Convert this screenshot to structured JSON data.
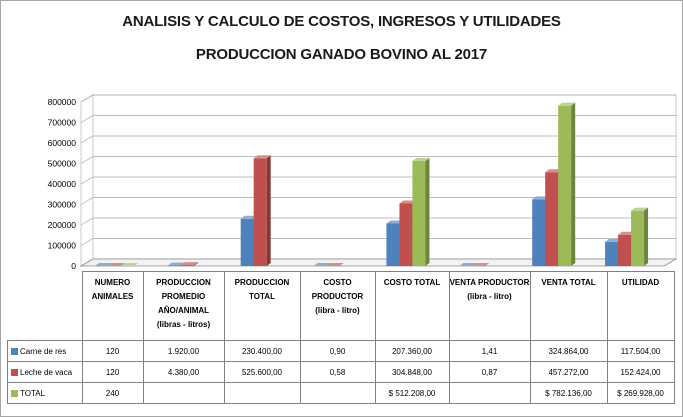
{
  "title_line1": "ANALISIS Y CALCULO DE COSTOS, INGRESOS Y UTILIDADES",
  "title_line2": "PRODUCCION GANADO BOVINO AL 2017",
  "colors": {
    "carne": "#4f81bd",
    "leche": "#c0504d",
    "total": "#9bbb59"
  },
  "chart_data": {
    "type": "bar",
    "title": "ANALISIS Y CALCULO DE COSTOS, INGRESOS Y UTILIDADES PRODUCCION GANADO BOVINO AL 2017",
    "categories": [
      "NUMERO ANIMALES",
      "PRODUCCION PROMEDIO AÑO/ANIMAL (libras - litros)",
      "PRODUCCION TOTAL",
      "COSTO PRODUCTOR (libra - litro)",
      "COSTO TOTAL",
      "VENTA PRODUCTOR (libra - litro)",
      "VENTA TOTAL",
      "UTILIDAD"
    ],
    "series": [
      {
        "name": "Carne de res",
        "values": [
          120,
          1920,
          230400,
          0.9,
          207360,
          1.41,
          324864,
          117504
        ]
      },
      {
        "name": "Leche de vaca",
        "values": [
          120,
          4380,
          525600,
          0.58,
          304848,
          0.87,
          457272,
          152424
        ]
      },
      {
        "name": "TOTAL",
        "values": [
          240,
          null,
          null,
          null,
          512208,
          null,
          782136,
          269928
        ]
      }
    ],
    "ylim": [
      0,
      800000
    ],
    "yticks": [
      "0",
      "100000",
      "200000",
      "300000",
      "400000",
      "500000",
      "600000",
      "700000",
      "800000"
    ],
    "grid": true,
    "legend": "data table"
  },
  "table": {
    "headers": [
      [
        "NUMERO",
        "ANIMALES"
      ],
      [
        "PRODUCCION",
        "PROMEDIO",
        "AÑO/ANIMAL",
        "(libras - litros)"
      ],
      [
        "PRODUCCION",
        "TOTAL"
      ],
      [
        "COSTO",
        "PRODUCTOR",
        "(libra - litro)"
      ],
      [
        "COSTO TOTAL"
      ],
      [
        "VENTA PRODUCTOR",
        "(libra - litro)"
      ],
      [
        "VENTA     TOTAL"
      ],
      [
        "UTILIDAD"
      ]
    ],
    "rows": [
      {
        "label": "Carne de res",
        "cells": [
          "120",
          "1.920,00",
          "230.400,00",
          "0,90",
          "207.360,00",
          "1,41",
          "324.864,00",
          "117.504,00"
        ]
      },
      {
        "label": "Leche de vaca",
        "cells": [
          "120",
          "4.380,00",
          "525.600,00",
          "0,58",
          "304.848,00",
          "0,87",
          "457.272,00",
          "152.424,00"
        ]
      },
      {
        "label": "TOTAL",
        "cells": [
          "240",
          "",
          "",
          "",
          "$ 512.208,00",
          "",
          "$ 782.136,00",
          "$ 269.928,00"
        ]
      }
    ]
  }
}
